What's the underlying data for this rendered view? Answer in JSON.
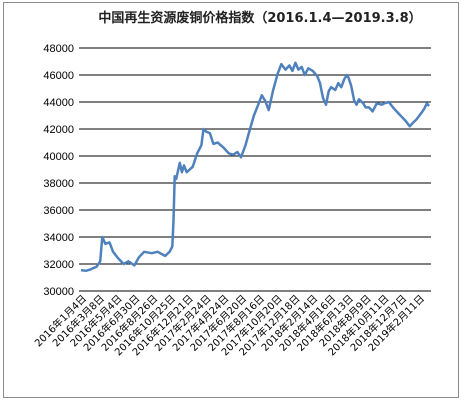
{
  "chart_data": {
    "type": "line",
    "title": "中国再生资源废铜价格指数（2016.1.4—2019.3.8）",
    "xlabel": "",
    "ylabel": "",
    "ylim": [
      30000,
      48000
    ],
    "yticks": [
      30000,
      32000,
      34000,
      36000,
      38000,
      40000,
      42000,
      44000,
      46000,
      48000
    ],
    "grid": true,
    "x_range": [
      "2016-01-04",
      "2019-03-08"
    ],
    "x_tick_labels": [
      "2016年1月4日",
      "2016年3月8日",
      "2016年5月4日",
      "2016年6月30日",
      "2016年8月26日",
      "2016年10月25日",
      "2016年12月21日",
      "2017年2月24日",
      "2017年4月24日",
      "2017年6月20日",
      "2017年8月16日",
      "2017年10月20日",
      "2017年12月18日",
      "2018年2月14日",
      "2018年4月16日",
      "2018年6月13日",
      "2018年8月9日",
      "2018年10月11日",
      "2018年12月7日",
      "2019年2月11日"
    ],
    "color": "#4f81bd",
    "series": [
      {
        "values": [
          [
            "2016-01-04",
            31550
          ],
          [
            "2016-01-20",
            31500
          ],
          [
            "2016-02-05",
            31600
          ],
          [
            "2016-02-25",
            31800
          ],
          [
            "2016-03-08",
            32200
          ],
          [
            "2016-03-15",
            34000
          ],
          [
            "2016-03-25",
            33500
          ],
          [
            "2016-04-08",
            33600
          ],
          [
            "2016-04-20",
            32900
          ],
          [
            "2016-05-04",
            32500
          ],
          [
            "2016-05-25",
            32000
          ],
          [
            "2016-06-10",
            32200
          ],
          [
            "2016-06-30",
            31900
          ],
          [
            "2016-07-15",
            32500
          ],
          [
            "2016-08-01",
            32900
          ],
          [
            "2016-08-26",
            32800
          ],
          [
            "2016-09-15",
            32900
          ],
          [
            "2016-10-10",
            32600
          ],
          [
            "2016-10-25",
            32900
          ],
          [
            "2016-11-03",
            33300
          ],
          [
            "2016-11-07",
            35200
          ],
          [
            "2016-11-11",
            38500
          ],
          [
            "2016-11-16",
            38300
          ],
          [
            "2016-11-28",
            39500
          ],
          [
            "2016-12-05",
            38800
          ],
          [
            "2016-12-12",
            39300
          ],
          [
            "2016-12-21",
            38800
          ],
          [
            "2017-01-10",
            39200
          ],
          [
            "2017-01-25",
            40200
          ],
          [
            "2017-02-08",
            40800
          ],
          [
            "2017-02-15",
            42000
          ],
          [
            "2017-02-24",
            41800
          ],
          [
            "2017-03-08",
            41700
          ],
          [
            "2017-03-20",
            40900
          ],
          [
            "2017-04-03",
            41000
          ],
          [
            "2017-04-24",
            40600
          ],
          [
            "2017-05-10",
            40200
          ],
          [
            "2017-05-25",
            40100
          ],
          [
            "2017-06-08",
            40300
          ],
          [
            "2017-06-20",
            39900
          ],
          [
            "2017-07-05",
            40800
          ],
          [
            "2017-07-20",
            42000
          ],
          [
            "2017-08-02",
            43000
          ],
          [
            "2017-08-16",
            43800
          ],
          [
            "2017-08-28",
            44500
          ],
          [
            "2017-09-08",
            44100
          ],
          [
            "2017-09-20",
            43400
          ],
          [
            "2017-10-05",
            44900
          ],
          [
            "2017-10-20",
            46100
          ],
          [
            "2017-11-01",
            46800
          ],
          [
            "2017-11-15",
            46400
          ],
          [
            "2017-11-28",
            46700
          ],
          [
            "2017-12-08",
            46300
          ],
          [
            "2017-12-18",
            46900
          ],
          [
            "2017-12-28",
            46400
          ],
          [
            "2018-01-08",
            46600
          ],
          [
            "2018-01-18",
            46000
          ],
          [
            "2018-01-30",
            46500
          ],
          [
            "2018-02-14",
            46300
          ],
          [
            "2018-03-01",
            45900
          ],
          [
            "2018-03-10",
            45400
          ],
          [
            "2018-03-20",
            44300
          ],
          [
            "2018-03-30",
            43800
          ],
          [
            "2018-04-08",
            44800
          ],
          [
            "2018-04-16",
            45100
          ],
          [
            "2018-04-30",
            44900
          ],
          [
            "2018-05-10",
            45400
          ],
          [
            "2018-05-20",
            45100
          ],
          [
            "2018-05-30",
            45700
          ],
          [
            "2018-06-08",
            46000
          ],
          [
            "2018-06-13",
            45800
          ],
          [
            "2018-06-22",
            45200
          ],
          [
            "2018-07-02",
            44100
          ],
          [
            "2018-07-10",
            43800
          ],
          [
            "2018-07-18",
            44200
          ],
          [
            "2018-08-01",
            43900
          ],
          [
            "2018-08-09",
            43600
          ],
          [
            "2018-08-20",
            43600
          ],
          [
            "2018-09-01",
            43300
          ],
          [
            "2018-09-15",
            43900
          ],
          [
            "2018-10-01",
            43800
          ],
          [
            "2018-10-11",
            43900
          ],
          [
            "2018-10-25",
            44000
          ],
          [
            "2018-11-08",
            43600
          ],
          [
            "2018-11-20",
            43300
          ],
          [
            "2018-12-07",
            42900
          ],
          [
            "2018-12-20",
            42600
          ],
          [
            "2019-01-03",
            42200
          ],
          [
            "2019-01-15",
            42500
          ],
          [
            "2019-01-25",
            42700
          ],
          [
            "2019-02-11",
            43200
          ],
          [
            "2019-02-20",
            43500
          ],
          [
            "2019-03-01",
            43900
          ],
          [
            "2019-03-08",
            43700
          ]
        ]
      }
    ]
  }
}
